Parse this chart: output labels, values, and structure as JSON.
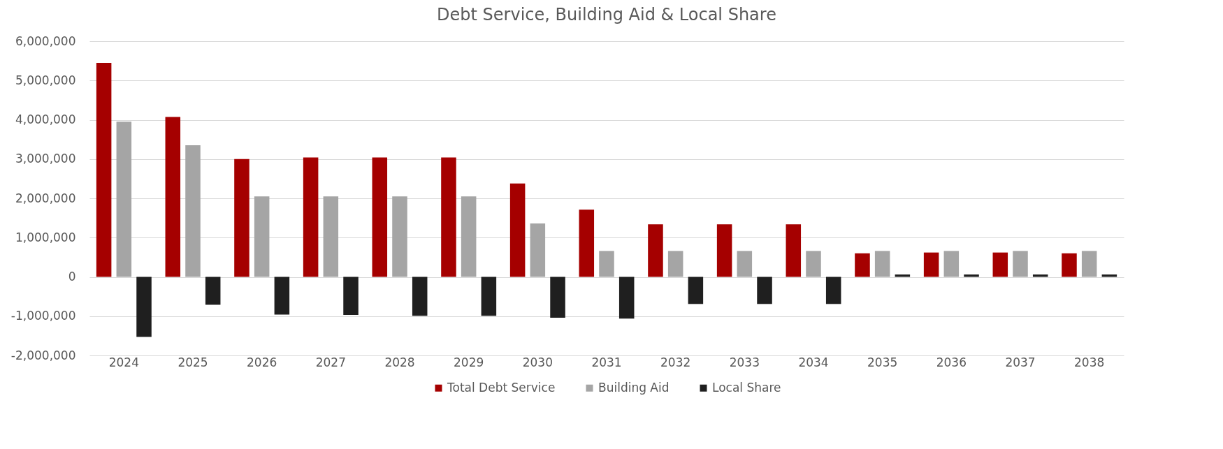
{
  "chart_data": {
    "type": "bar",
    "title": "Debt Service, Building Aid & Local Share",
    "categories": [
      "2024",
      "2025",
      "2026",
      "2027",
      "2028",
      "2029",
      "2030",
      "2031",
      "2032",
      "2033",
      "2034",
      "2035",
      "2036",
      "2037",
      "2038"
    ],
    "series": [
      {
        "name": "Total Debt Service",
        "color": "#a50000",
        "values": [
          5450000,
          4070000,
          3000000,
          3040000,
          3040000,
          3040000,
          2380000,
          1710000,
          1340000,
          1340000,
          1340000,
          600000,
          620000,
          620000,
          600000
        ]
      },
      {
        "name": "Building Aid",
        "color": "#a5a5a5",
        "values": [
          3950000,
          3350000,
          2050000,
          2050000,
          2050000,
          2050000,
          1360000,
          660000,
          660000,
          660000,
          660000,
          660000,
          660000,
          660000,
          660000
        ]
      },
      {
        "name": "Local Share",
        "color": "#1f1f1f",
        "values": [
          -1530000,
          -710000,
          -960000,
          -970000,
          -990000,
          -990000,
          -1040000,
          -1060000,
          -690000,
          -690000,
          -690000,
          60000,
          60000,
          60000,
          60000
        ]
      }
    ],
    "ylim": [
      -2000000,
      6000000
    ],
    "yticks": [
      {
        "value": -2000000,
        "label": "-2,000,000"
      },
      {
        "value": -1000000,
        "label": "-1,000,000"
      },
      0,
      {
        "value": 1000000,
        "label": "1,000,000"
      },
      {
        "value": 2000000,
        "label": "2,000,000"
      },
      {
        "value": 3000000,
        "label": "3,000,000"
      },
      {
        "value": 4000000,
        "label": "4,000,000"
      },
      {
        "value": 5000000,
        "label": "5,000,000"
      },
      {
        "value": 6000000,
        "label": "6,000,000"
      }
    ],
    "grid": "y",
    "legend": "bottom"
  }
}
